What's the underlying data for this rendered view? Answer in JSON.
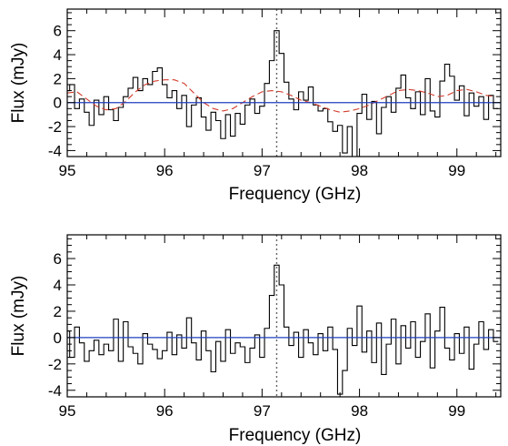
{
  "chart_data": [
    {
      "type": "line",
      "panel": "top",
      "title": "",
      "xlabel": "Frequency (GHz)",
      "ylabel": "Flux (mJy)",
      "xlim": [
        95.0,
        99.45
      ],
      "ylim": [
        -4.5,
        7.8
      ],
      "xticks": [
        95,
        96,
        97,
        98,
        99
      ],
      "yticks": [
        -4,
        -2,
        0,
        2,
        4,
        6
      ],
      "grid": false,
      "line_marker_freq": 97.15,
      "series": [
        {
          "style": "steps",
          "color": "#000000",
          "x": [
            95.0,
            95.05,
            95.1,
            95.15,
            95.2,
            95.25,
            95.3,
            95.35,
            95.4,
            95.45,
            95.5,
            95.55,
            95.6,
            95.65,
            95.7,
            95.75,
            95.8,
            95.85,
            95.9,
            95.95,
            96.0,
            96.05,
            96.1,
            96.15,
            96.2,
            96.25,
            96.3,
            96.35,
            96.4,
            96.45,
            96.5,
            96.55,
            96.6,
            96.65,
            96.7,
            96.75,
            96.8,
            96.85,
            96.9,
            96.95,
            97.0,
            97.05,
            97.1,
            97.15,
            97.2,
            97.25,
            97.3,
            97.35,
            97.4,
            97.45,
            97.5,
            97.55,
            97.6,
            97.65,
            97.7,
            97.75,
            97.8,
            97.85,
            97.9,
            97.95,
            98.0,
            98.05,
            98.1,
            98.15,
            98.2,
            98.25,
            98.3,
            98.35,
            98.4,
            98.45,
            98.5,
            98.55,
            98.6,
            98.65,
            98.7,
            98.75,
            98.8,
            98.85,
            98.9,
            98.95,
            99.0,
            99.05,
            99.1,
            99.15,
            99.2,
            99.25,
            99.3,
            99.35,
            99.4
          ],
          "values": [
            1.0,
            1.5,
            -0.5,
            0.3,
            -0.8,
            -1.9,
            0.2,
            -1.0,
            0.5,
            -0.6,
            -1.5,
            -0.4,
            0.5,
            1.2,
            2.1,
            1.0,
            2.0,
            1.5,
            2.6,
            2.9,
            1.5,
            0.4,
            1.0,
            -0.5,
            0.6,
            -2.0,
            -0.2,
            0.4,
            -1.2,
            -2.3,
            -0.8,
            -1.5,
            -3.0,
            -1.0,
            -2.8,
            -0.9,
            -1.8,
            -0.2,
            0.3,
            -0.9,
            -0.3,
            1.6,
            3.5,
            6.0,
            4.1,
            1.7,
            0.3,
            -0.6,
            0.9,
            0.2,
            1.3,
            -0.2,
            -0.7,
            -0.5,
            -1.6,
            -2.4,
            -1.9,
            -4.2,
            -2.0,
            -4.5,
            -0.9,
            0.7,
            -1.4,
            0.1,
            -2.6,
            -0.4,
            0.5,
            -0.8,
            1.2,
            2.3,
            0.4,
            -0.5,
            0.9,
            -1.0,
            2.0,
            -0.7,
            -1.2,
            1.8,
            3.2,
            2.2,
            0.2,
            1.4,
            -1.1,
            0.8,
            -0.3,
            0.5,
            -1.4,
            0.6,
            -0.5
          ]
        },
        {
          "style": "dashed",
          "color": "#d23b2c",
          "x": [
            95.0,
            95.1,
            95.2,
            95.3,
            95.4,
            95.5,
            95.6,
            95.7,
            95.8,
            95.9,
            96.0,
            96.1,
            96.2,
            96.3,
            96.4,
            96.5,
            96.6,
            96.7,
            96.8,
            96.9,
            97.0,
            97.1,
            97.2,
            97.3,
            97.4,
            97.5,
            97.6,
            97.7,
            97.8,
            97.9,
            98.0,
            98.1,
            98.2,
            98.3,
            98.4,
            98.5,
            98.6,
            98.7,
            98.8,
            98.9,
            99.0,
            99.1,
            99.2,
            99.3,
            99.4
          ],
          "values": [
            0.8,
            0.9,
            0.3,
            -0.3,
            -0.6,
            -0.5,
            0.1,
            0.9,
            1.5,
            1.8,
            1.9,
            1.9,
            1.6,
            0.8,
            0.0,
            -0.5,
            -0.7,
            -0.5,
            0.0,
            0.5,
            0.9,
            1.0,
            0.9,
            0.6,
            0.2,
            0.0,
            -0.3,
            -0.6,
            -0.8,
            -0.7,
            -0.5,
            -0.2,
            0.2,
            0.6,
            1.0,
            1.1,
            1.0,
            0.8,
            0.5,
            0.6,
            1.0,
            1.1,
            0.9,
            0.6,
            0.5
          ]
        },
        {
          "style": "horizontal",
          "color": "#1f3fbf",
          "x": [
            95.0,
            99.45
          ],
          "values": [
            0,
            0
          ]
        }
      ]
    },
    {
      "type": "line",
      "panel": "bottom",
      "title": "",
      "xlabel": "Frequency (GHz)",
      "ylabel": "Flux (mJy)",
      "xlim": [
        95.0,
        99.45
      ],
      "ylim": [
        -4.5,
        7.8
      ],
      "xticks": [
        95,
        96,
        97,
        98,
        99
      ],
      "yticks": [
        -4,
        -2,
        0,
        2,
        4,
        6
      ],
      "grid": false,
      "line_marker_freq": 97.15,
      "series": [
        {
          "style": "steps",
          "color": "#000000",
          "x": [
            95.0,
            95.05,
            95.1,
            95.15,
            95.2,
            95.25,
            95.3,
            95.35,
            95.4,
            95.45,
            95.5,
            95.55,
            95.6,
            95.65,
            95.7,
            95.75,
            95.8,
            95.85,
            95.9,
            95.95,
            96.0,
            96.05,
            96.1,
            96.15,
            96.2,
            96.25,
            96.3,
            96.35,
            96.4,
            96.45,
            96.5,
            96.55,
            96.6,
            96.65,
            96.7,
            96.75,
            96.8,
            96.85,
            96.9,
            96.95,
            97.0,
            97.05,
            97.1,
            97.15,
            97.2,
            97.25,
            97.3,
            97.35,
            97.4,
            97.45,
            97.5,
            97.55,
            97.6,
            97.65,
            97.7,
            97.75,
            97.8,
            97.85,
            97.9,
            97.95,
            98.0,
            98.05,
            98.1,
            98.15,
            98.2,
            98.25,
            98.3,
            98.35,
            98.4,
            98.45,
            98.5,
            98.55,
            98.6,
            98.65,
            98.7,
            98.75,
            98.8,
            98.85,
            98.9,
            98.95,
            99.0,
            99.05,
            99.1,
            99.15,
            99.2,
            99.25,
            99.3,
            99.35,
            99.4
          ],
          "values": [
            0.5,
            -1.5,
            0.8,
            -0.4,
            -1.8,
            -1.0,
            -0.2,
            -1.3,
            -0.5,
            -1.0,
            1.4,
            -1.8,
            1.2,
            -0.7,
            -1.2,
            -2.0,
            0.3,
            -0.5,
            -0.9,
            -1.6,
            -1.0,
            0.4,
            -1.3,
            0.2,
            -0.8,
            1.5,
            -0.4,
            -1.7,
            0.5,
            -1.0,
            -2.6,
            -0.3,
            -1.8,
            0.6,
            -1.2,
            -0.4,
            -0.7,
            -1.9,
            -0.8,
            0.2,
            -1.5,
            0.7,
            3.2,
            5.5,
            4.0,
            0.8,
            -0.6,
            0.4,
            -1.5,
            0.6,
            -0.4,
            -1.3,
            0.3,
            -1.0,
            0.8,
            -0.9,
            -4.3,
            -2.5,
            0.7,
            -0.6,
            2.4,
            -1.1,
            0.5,
            -1.9,
            1.1,
            -2.8,
            -0.5,
            1.4,
            -2.0,
            0.9,
            -0.8,
            1.2,
            -1.5,
            -0.3,
            1.8,
            -2.3,
            0.5,
            2.3,
            -0.8,
            -1.7,
            0.3,
            -1.2,
            0.8,
            -2.4,
            -0.5,
            1.2,
            -0.9,
            0.6,
            -0.3
          ]
        },
        {
          "style": "horizontal",
          "color": "#1f3fbf",
          "x": [
            95.0,
            99.45
          ],
          "values": [
            0,
            0
          ]
        }
      ]
    }
  ]
}
